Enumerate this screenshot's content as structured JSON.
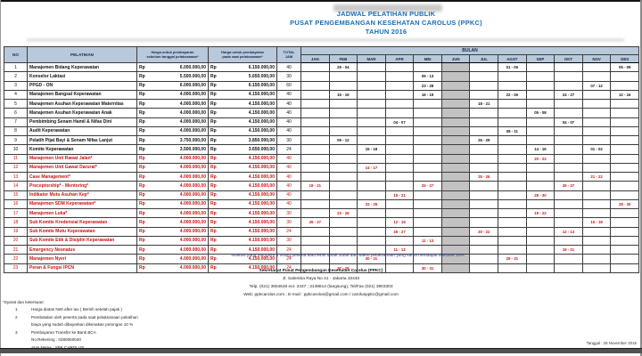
{
  "title": {
    "line1": "JADWAL PELATIHAN PUBLIK",
    "line2": "PUSAT PENGEMBANGAN KESEHATAN CAROLUS (PPKC)",
    "line3": "TAHUN 2016"
  },
  "colors": {
    "title_blue": "#1a6fb5",
    "header_bg": "#b7c9da",
    "red_row": "#cf1212",
    "jun_shade": "#c2c2c2"
  },
  "table": {
    "headers": {
      "no": "NO",
      "pelatihan": "PELATIHAN",
      "price_before_line1": "Harga untuk pembayaran",
      "price_before_line2": "sebelum tanggal pelaksanaan*",
      "price_onsite_line1": "Harga untuk pembayaran",
      "price_onsite_line2": "pada saat  pelaksanaan*",
      "total_line1": "TOTAL",
      "total_line2": "JAM",
      "bulan": "BULAN",
      "currency": "Rp"
    },
    "months": [
      "JAN",
      "FEB",
      "MAR",
      "APR",
      "MEI",
      "JUN",
      "JUL",
      "AGST",
      "SEP",
      "OKT",
      "NOV",
      "DES"
    ],
    "shaded_month": "JUN",
    "rows": [
      {
        "no": "1",
        "name": "Manajemen Bidang Keperawatan",
        "red": false,
        "p1": "6.000.000,00",
        "p2": "6.150.000,00",
        "jam": "40",
        "dates": {
          "FEB": "29 - 04",
          "AGST": "01 - 05",
          "DES": "05 - 09"
        }
      },
      {
        "no": "2",
        "name": "Konselor Laktasi",
        "red": false,
        "p1": "5.500.000,00",
        "p2": "5.650.000,00",
        "jam": "30",
        "dates": {
          "MEI": "09 - 13"
        }
      },
      {
        "no": "3",
        "name": "PPGD - ON",
        "red": false,
        "p1": "6.000.000,00",
        "p2": "6.150.000,00",
        "jam": "60",
        "dates": {
          "MEI": "23 - 28",
          "NOV": "07 - 12"
        }
      },
      {
        "no": "4",
        "name": "Manajemen Bangsal Keperawatan",
        "red": false,
        "p1": "4.000.000,00",
        "p2": "4.150.000,00",
        "jam": "40",
        "dates": {
          "FEB": "15 - 19",
          "MEI": "16 - 19",
          "AGST": "22 - 26",
          "OKT": "24 - 27",
          "DES": "12 - 16"
        }
      },
      {
        "no": "5",
        "name": "Manajemen Asuhan Keperawatan Maternitas",
        "red": false,
        "p1": "4.000.000,00",
        "p2": "4.150.000,00",
        "jam": "40",
        "dates": {
          "JUL": "18 - 21"
        }
      },
      {
        "no": "6",
        "name": "Manajemen Asuhan Keperawatan Anak",
        "red": false,
        "p1": "4.000.000,00",
        "p2": "4.150.000,00",
        "jam": "40",
        "dates": {
          "SEP": "05 - 08"
        }
      },
      {
        "no": "7",
        "name": "Pembimbing Senam Hamil & Nifas Dini",
        "red": false,
        "p1": "4.000.000,00",
        "p2": "4.150.000,00",
        "jam": "40",
        "dates": {
          "APR": "04 - 07",
          "OKT": "04 - 07"
        }
      },
      {
        "no": "8",
        "name": "Audit Keperawatan",
        "red": false,
        "p1": "4.000.000,00",
        "p2": "4.150.000,00",
        "jam": "40",
        "dates": {
          "AGST": "08 - 11"
        }
      },
      {
        "no": "9",
        "name": "Pelatih Pijat Bayi & Senam Nifas Lanjut",
        "red": false,
        "p1": "3.750.000,00",
        "p2": "3.850.000,00",
        "jam": "30",
        "dates": {
          "FEB": "09 - 12",
          "JUL": "26 - 29"
        }
      },
      {
        "no": "10",
        "name": "Komite Keperawatan",
        "red": false,
        "p1": "3.500.000,00",
        "p2": "3.650.000,00",
        "jam": "24",
        "dates": {
          "MAR": "15 - 18",
          "SEP": "14 - 16",
          "NOV": "01 - 02"
        }
      },
      {
        "no": "11",
        "name": "Manajemen Unit Rawat Jalan*",
        "red": true,
        "p1": "4.000.000,00",
        "p2": "4.150.000,00",
        "jam": "40",
        "dates": {
          "SEP": "20 - 23"
        }
      },
      {
        "no": "12",
        "name": "Manajemen Unit Gawat Darurat*",
        "red": true,
        "p1": "4.000.000,00",
        "p2": "4.150.000,00",
        "jam": "40",
        "dates": {
          "MAR": "14 - 17"
        }
      },
      {
        "no": "13",
        "name": "Case Management*",
        "red": true,
        "p1": "4.000.000,00",
        "p2": "4.150.000,00",
        "jam": "40",
        "dates": {
          "JUL": "25 - 26",
          "NOV": "21 - 22"
        }
      },
      {
        "no": "14",
        "name": "Preceptorship* - Mentoring*",
        "red": true,
        "p1": "4.000.000,00",
        "p2": "4.150.000,00",
        "jam": "40",
        "dates": {
          "JAN": "19 - 21",
          "MEI": "25 - 27",
          "OKT": "25 - 27"
        }
      },
      {
        "no": "15",
        "name": "Indikator Mutu Asuhan Kep*",
        "red": true,
        "p1": "4.000.000,00",
        "p2": "4.150.000,00",
        "jam": "40",
        "dates": {
          "APR": "19 - 21",
          "SEP": "28 - 30"
        }
      },
      {
        "no": "16",
        "name": "Manajemen SDM Keperawatan*",
        "red": true,
        "p1": "4.000.000,00",
        "p2": "4.150.000,00",
        "jam": "40",
        "dates": {
          "MAR": "22 - 25",
          "DES": "28 - 30"
        }
      },
      {
        "no": "17",
        "name": "Manajemen Luka*",
        "red": true,
        "p1": "4.000.000,00",
        "p2": "4.150.000,00",
        "jam": "30",
        "dates": {
          "FEB": "23 - 26",
          "SEP": "19 - 22"
        }
      },
      {
        "no": "18",
        "name": "Sub Komite Kredensial Keperawatan",
        "red": true,
        "p1": "4.000.000,00",
        "p2": "4.150.000,00",
        "jam": "30",
        "dates": {
          "JAN": "26 - 27",
          "APR": "12 - 15",
          "NOV": "15 - 18"
        }
      },
      {
        "no": "19",
        "name": "Sub Komite Mutu Keperawatan",
        "red": true,
        "p1": "4.000.000,00",
        "p2": "4.150.000,00",
        "jam": "24",
        "dates": {
          "APR": "26 - 27",
          "JUL": "20 - 22",
          "OKT": "12 - 13"
        }
      },
      {
        "no": "20",
        "name": "Sub Komite Etik & Disiplin Keperawatan",
        "red": true,
        "p1": "4.000.000,00",
        "p2": "4.150.000,00",
        "jam": "30",
        "dates": {
          "MEI": "11 - 13"
        }
      },
      {
        "no": "21",
        "name": "Emergency Neonatus",
        "red": true,
        "p1": "4.000.000,00",
        "p2": "4.150.000,00",
        "jam": "24",
        "dates": {
          "APR": "11 - 13",
          "OKT": "19 - 21"
        }
      },
      {
        "no": "22",
        "name": "Manajemen Nyeri",
        "red": true,
        "p1": "4.000.000,00",
        "p2": "4.150.000,00",
        "jam": "24",
        "dates": {
          "MAR": "30 - 31",
          "AGST": "29 - 31"
        }
      },
      {
        "no": "23",
        "name": "Peran & Fungsi IPCN",
        "red": true,
        "p1": "4.000.000,00",
        "p2": "4.150.000,00",
        "jam": "24",
        "dates": {
          "FEB": "27 - 29",
          "MEI": "30 - 31"
        }
      }
    ]
  },
  "footer": {
    "discount_note": "Institusi yang mengirim  3 orang peserta atau lebih  untuk Judul dan waktu pelaksanaan yang sama  mendapat discount 10%",
    "contact_line1": "Sekretariat Pusat  Pengembangan Kesehatan Carolus (PPKC)",
    "contact_line2": "Jl. Salemba Raya No 41 - Jakarta 10440",
    "contact_line3": "Telp. (021) 3904648 ext. 2437 ; 3148814 (langsung), Tel/Fax (021) 3903303",
    "contact_line4": "Web: ppkcarolus.com ; E-mail : ppkcarolus@gmail.com / carolusppkc@gmail.com",
    "date_stamp": "Tanggal : 26 November 2015"
  },
  "terms": {
    "heading": "*Syarat dan ketentuan:",
    "items": [
      {
        "num": "1",
        "text": "Harga  diatas Nett after tax  ( Bersih setelah pajak )"
      },
      {
        "num": "2",
        "text": "Pembatalan oleh peserta pada saat  pelaksanaan  pelatihan"
      },
      {
        "num": "",
        "text": "biaya yang  sudah dibayarkan dikenakan  potongan 10 %"
      },
      {
        "num": "3",
        "text": "Pembayaran Transfer ke Bank  BCA"
      },
      {
        "num": "",
        "text": "No.Rekening    :  0280050040"
      },
      {
        "num": "",
        "text": "Atas Nama      :  YPK  CAROLUS"
      }
    ]
  }
}
